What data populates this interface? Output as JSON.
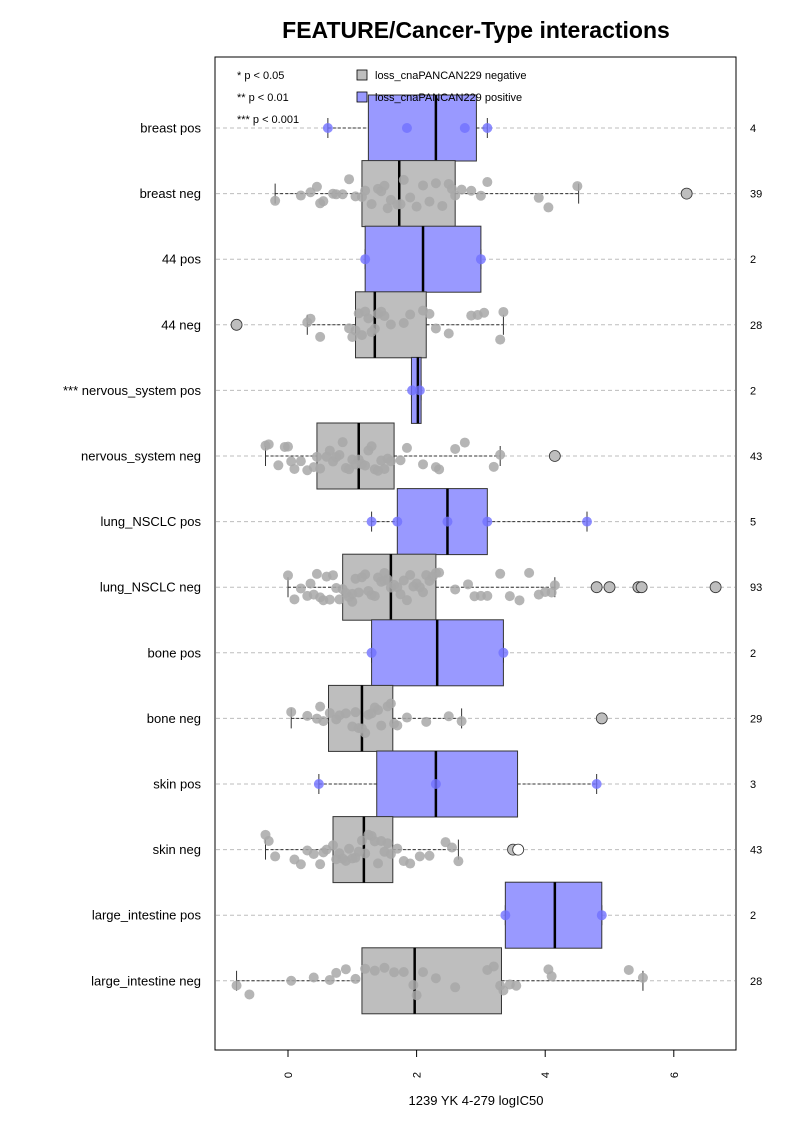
{
  "chart_data": {
    "type": "boxplot",
    "title": "FEATURE/Cancer-Type interactions",
    "xlabel": "1239 YK 4-279 logIC50",
    "xlim": [
      -1.1,
      7.1
    ],
    "x_ticks": [
      0,
      2,
      4,
      6
    ],
    "legend": {
      "position": "top-left",
      "entries": [
        {
          "label": "loss_cnaPANCAN229 negative",
          "color": "#bebebe"
        },
        {
          "label": "loss_cnaPANCAN229 positive",
          "color": "#9999ff"
        }
      ],
      "significance": [
        "* p < 0.05",
        "** p < 0.01",
        "*** p < 0.001"
      ]
    },
    "colors": {
      "negative_box": "#bebebe",
      "positive_box": "#9999ff",
      "negative_point": "#a8a8a8",
      "positive_point": "#7070ff"
    },
    "groups": [
      {
        "label": "breast pos",
        "n": "4",
        "type": "pos",
        "q1": 1.25,
        "median": 2.3,
        "q3": 2.93,
        "wlo": 0.62,
        "whi": 3.1,
        "outliers": [],
        "points": [
          0.62,
          1.85,
          2.75,
          3.1
        ]
      },
      {
        "label": "breast neg",
        "n": "39",
        "type": "neg",
        "q1": 1.15,
        "median": 1.73,
        "q3": 2.6,
        "wlo": -0.2,
        "whi": 4.52,
        "outliers": [
          6.2
        ],
        "points": [
          -0.2,
          0.2,
          0.35,
          0.45,
          0.5,
          0.55,
          0.7,
          0.75,
          0.85,
          0.95,
          1.05,
          1.15,
          1.2,
          1.3,
          1.4,
          1.45,
          1.5,
          1.55,
          1.6,
          1.7,
          1.75,
          1.8,
          1.9,
          2.0,
          2.1,
          2.2,
          2.3,
          2.4,
          2.5,
          2.55,
          2.6,
          2.7,
          2.85,
          3.0,
          3.1,
          3.9,
          4.05,
          4.5
        ]
      },
      {
        "label": "44 pos",
        "n": "2",
        "type": "pos",
        "q1": 1.2,
        "median": 2.1,
        "q3": 3.0,
        "wlo": 1.2,
        "whi": 3.0,
        "outliers": [],
        "points": [
          1.2,
          3.0
        ]
      },
      {
        "label": "44 neg",
        "n": "28",
        "type": "neg",
        "q1": 1.05,
        "median": 1.35,
        "q3": 2.15,
        "wlo": 0.3,
        "whi": 3.35,
        "outliers": [
          -0.8
        ],
        "points": [
          0.3,
          0.35,
          0.5,
          0.95,
          1.0,
          1.05,
          1.1,
          1.15,
          1.2,
          1.25,
          1.3,
          1.35,
          1.4,
          1.45,
          1.5,
          1.6,
          1.8,
          1.9,
          2.1,
          2.2,
          2.3,
          2.5,
          2.85,
          2.95,
          3.05,
          3.3,
          3.35
        ]
      },
      {
        "label": "*** nervous_system pos",
        "n": "2",
        "type": "pos",
        "q1": 1.92,
        "median": 2.02,
        "q3": 2.07,
        "wlo": 1.92,
        "whi": 2.07,
        "outliers": [],
        "points": [
          1.93,
          2.05
        ]
      },
      {
        "label": "nervous_system neg",
        "n": "43",
        "type": "neg",
        "q1": 0.45,
        "median": 1.1,
        "q3": 1.65,
        "wlo": -0.35,
        "whi": 3.3,
        "outliers": [
          4.15
        ],
        "points": [
          -0.35,
          -0.3,
          -0.15,
          -0.05,
          0.0,
          0.05,
          0.1,
          0.2,
          0.3,
          0.4,
          0.45,
          0.5,
          0.6,
          0.65,
          0.7,
          0.75,
          0.8,
          0.85,
          0.9,
          0.95,
          1.0,
          1.05,
          1.1,
          1.15,
          1.2,
          1.25,
          1.3,
          1.35,
          1.4,
          1.45,
          1.5,
          1.55,
          1.6,
          1.75,
          1.85,
          2.1,
          2.3,
          2.35,
          2.6,
          2.75,
          3.2,
          3.3
        ]
      },
      {
        "label": "lung_NSCLC pos",
        "n": "5",
        "type": "pos",
        "q1": 1.7,
        "median": 2.48,
        "q3": 3.1,
        "wlo": 1.3,
        "whi": 4.65,
        "outliers": [],
        "points": [
          1.3,
          1.7,
          2.48,
          3.1,
          4.65
        ]
      },
      {
        "label": "lung_NSCLC neg",
        "n": "93",
        "type": "neg",
        "q1": 0.85,
        "median": 1.6,
        "q3": 2.3,
        "wlo": 0.0,
        "whi": 4.15,
        "outliers": [
          4.8,
          5.0,
          5.45,
          5.5,
          6.65
        ],
        "points": [
          0.0,
          0.1,
          0.2,
          0.3,
          0.35,
          0.4,
          0.45,
          0.5,
          0.55,
          0.6,
          0.65,
          0.7,
          0.75,
          0.8,
          0.85,
          0.9,
          0.95,
          1.0,
          1.0,
          1.05,
          1.1,
          1.15,
          1.2,
          1.25,
          1.3,
          1.35,
          1.4,
          1.45,
          1.5,
          1.5,
          1.55,
          1.6,
          1.65,
          1.7,
          1.75,
          1.8,
          1.85,
          1.9,
          1.95,
          2.0,
          2.05,
          2.1,
          2.15,
          2.2,
          2.25,
          2.3,
          2.35,
          2.6,
          2.8,
          2.9,
          3.0,
          3.1,
          3.3,
          3.45,
          3.6,
          3.75,
          3.9,
          4.0,
          4.1,
          4.15
        ]
      },
      {
        "label": "bone pos",
        "n": "2",
        "type": "pos",
        "q1": 1.3,
        "median": 2.32,
        "q3": 3.35,
        "wlo": 1.3,
        "whi": 3.35,
        "outliers": [],
        "points": [
          1.3,
          3.35
        ]
      },
      {
        "label": "bone neg",
        "n": "29",
        "type": "neg",
        "q1": 0.63,
        "median": 1.15,
        "q3": 1.63,
        "wlo": 0.05,
        "whi": 2.7,
        "outliers": [
          4.88
        ],
        "points": [
          0.05,
          0.3,
          0.45,
          0.5,
          0.55,
          0.65,
          0.75,
          0.8,
          0.9,
          1.0,
          1.05,
          1.1,
          1.15,
          1.2,
          1.25,
          1.3,
          1.35,
          1.4,
          1.45,
          1.55,
          1.6,
          1.65,
          1.7,
          1.85,
          2.15,
          2.5,
          2.7
        ]
      },
      {
        "label": "skin pos",
        "n": "3",
        "type": "pos",
        "q1": 1.38,
        "median": 2.3,
        "q3": 3.57,
        "wlo": 0.48,
        "whi": 4.8,
        "outliers": [],
        "points": [
          0.48,
          2.3,
          4.8
        ]
      },
      {
        "label": "skin neg",
        "n": "43",
        "type": "neg",
        "q1": 0.7,
        "median": 1.18,
        "q3": 1.63,
        "wlo": -0.35,
        "whi": 2.65,
        "outliers": [
          3.5,
          3.58
        ],
        "points": [
          -0.35,
          -0.3,
          -0.2,
          0.1,
          0.2,
          0.3,
          0.4,
          0.5,
          0.55,
          0.6,
          0.7,
          0.75,
          0.8,
          0.85,
          0.9,
          0.95,
          1.0,
          1.05,
          1.1,
          1.15,
          1.2,
          1.25,
          1.3,
          1.35,
          1.4,
          1.45,
          1.5,
          1.55,
          1.6,
          1.7,
          1.8,
          1.9,
          2.05,
          2.2,
          2.45,
          2.55,
          2.65,
          3.55
        ]
      },
      {
        "label": "large_intestine pos",
        "n": "2",
        "type": "pos",
        "q1": 3.38,
        "median": 4.15,
        "q3": 4.88,
        "wlo": 3.38,
        "whi": 4.88,
        "outliers": [],
        "points": [
          3.38,
          4.88
        ]
      },
      {
        "label": "large_intestine neg",
        "n": "28",
        "type": "neg",
        "q1": 1.15,
        "median": 1.97,
        "q3": 3.32,
        "wlo": -0.8,
        "whi": 5.52,
        "outliers": [],
        "points": [
          -0.8,
          -0.6,
          0.05,
          0.4,
          0.65,
          0.75,
          0.9,
          1.05,
          1.2,
          1.35,
          1.5,
          1.65,
          1.8,
          1.95,
          2.0,
          2.1,
          2.3,
          2.6,
          3.1,
          3.2,
          3.3,
          3.35,
          3.45,
          3.55,
          4.05,
          4.1,
          5.3,
          5.52
        ]
      }
    ]
  }
}
